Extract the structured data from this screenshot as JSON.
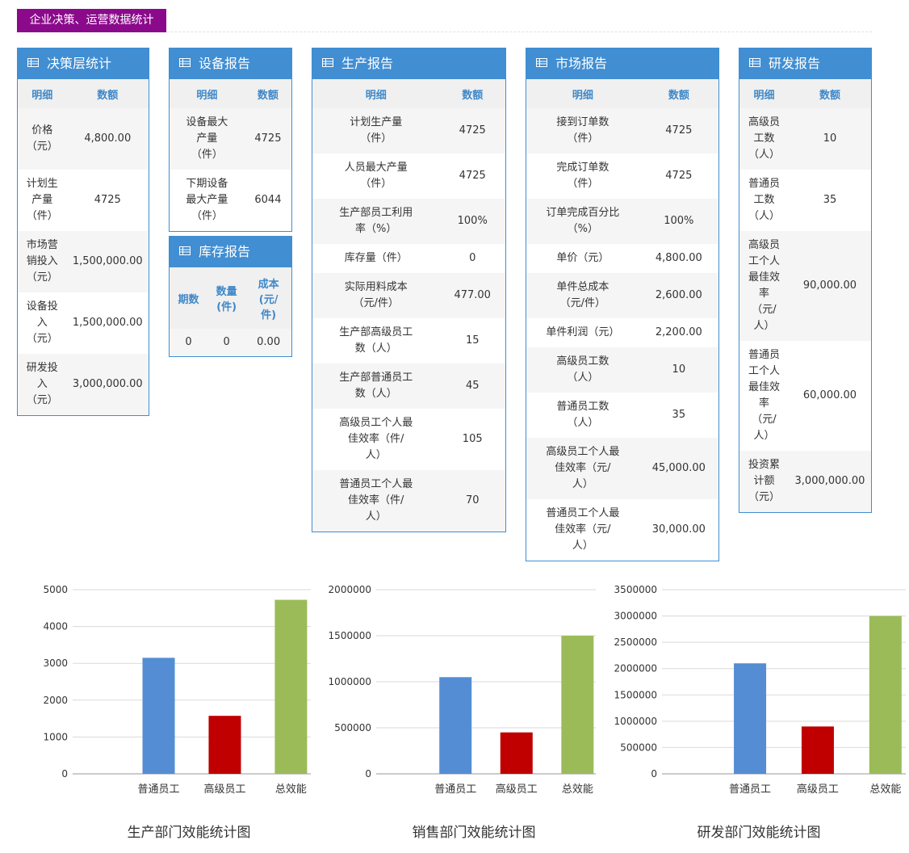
{
  "page_tag": "企业决策、运营数据统计",
  "colors": {
    "accent": "#418ed2",
    "tag": "#8b0a8b",
    "bar_normal": "#548dd4",
    "bar_senior": "#c00000",
    "bar_total": "#9bbb59"
  },
  "icons": {
    "table": "table-icon"
  },
  "panels": {
    "decision": {
      "title": "决策层统计",
      "headers": [
        "明细",
        "数额"
      ],
      "rows": [
        [
          "价格\n（元）",
          "4,800.00"
        ],
        [
          "计划生\n产量\n（件）",
          "4725"
        ],
        [
          "市场营\n销投入\n（元）",
          "1,500,000.00"
        ],
        [
          "设备投\n入\n（元）",
          "1,500,000.00"
        ],
        [
          "研发投\n入\n（元）",
          "3,000,000.00"
        ]
      ]
    },
    "equipment": {
      "title": "设备报告",
      "headers": [
        "明细",
        "数额"
      ],
      "rows": [
        [
          "设备最大\n产量\n（件）",
          "4725"
        ],
        [
          "下期设备\n最大产量\n（件）",
          "6044"
        ]
      ]
    },
    "inventory": {
      "title": "库存报告",
      "headers": [
        "期数",
        "数量\n(件)",
        "成本\n(元/\n件)"
      ],
      "rows": [
        [
          "0",
          "0",
          "0.00"
        ]
      ]
    },
    "production": {
      "title": "生产报告",
      "headers": [
        "明细",
        "数额"
      ],
      "rows": [
        [
          "计划生产量\n（件）",
          "4725"
        ],
        [
          "人员最大产量\n（件）",
          "4725"
        ],
        [
          "生产部员工利用\n率（%）",
          "100%"
        ],
        [
          "库存量（件）",
          "0"
        ],
        [
          "实际用料成本\n（元/件）",
          "477.00"
        ],
        [
          "生产部高级员工\n数（人）",
          "15"
        ],
        [
          "生产部普通员工\n数（人）",
          "45"
        ],
        [
          "高级员工个人最\n佳效率（件/\n人）",
          "105"
        ],
        [
          "普通员工个人最\n佳效率（件/\n人）",
          "70"
        ]
      ]
    },
    "market": {
      "title": "市场报告",
      "headers": [
        "明细",
        "数额"
      ],
      "rows": [
        [
          "接到订单数\n（件）",
          "4725"
        ],
        [
          "完成订单数\n（件）",
          "4725"
        ],
        [
          "订单完成百分比\n（%）",
          "100%"
        ],
        [
          "单价（元）",
          "4,800.00"
        ],
        [
          "单件总成本\n（元/件）",
          "2,600.00"
        ],
        [
          "单件利润（元）",
          "2,200.00"
        ],
        [
          "高级员工数\n（人）",
          "10"
        ],
        [
          "普通员工数\n（人）",
          "35"
        ],
        [
          "高级员工个人最\n佳效率（元/\n人）",
          "45,000.00"
        ],
        [
          "普通员工个人最\n佳效率（元/\n人）",
          "30,000.00"
        ]
      ]
    },
    "rd": {
      "title": "研发报告",
      "headers": [
        "明细",
        "数额"
      ],
      "rows": [
        [
          "高级员\n工数\n（人）",
          "10"
        ],
        [
          "普通员\n工数\n（人）",
          "35"
        ],
        [
          "高级员\n工个人\n最佳效\n率\n（元/\n人）",
          "90,000.00"
        ],
        [
          "普通员\n工个人\n最佳效\n率\n（元/\n人）",
          "60,000.00"
        ],
        [
          "投资累\n计额\n（元）",
          "3,000,000.00"
        ]
      ]
    }
  },
  "chart_data": [
    {
      "type": "bar",
      "title": "生产部门效能统计图",
      "categories": [
        "普通员工",
        "高级员工",
        "总效能"
      ],
      "values": [
        3150,
        1575,
        4725
      ],
      "ylim": [
        0,
        5000
      ],
      "yticks": [
        0,
        1000,
        2000,
        3000,
        4000,
        5000
      ],
      "grid": true
    },
    {
      "type": "bar",
      "title": "销售部门效能统计图",
      "categories": [
        "普通员工",
        "高级员工",
        "总效能"
      ],
      "values": [
        1050000,
        450000,
        1500000
      ],
      "ylim": [
        0,
        2000000
      ],
      "yticks": [
        0,
        500000,
        1000000,
        1500000,
        2000000
      ],
      "grid": true
    },
    {
      "type": "bar",
      "title": "研发部门效能统计图",
      "categories": [
        "普通员工",
        "高级员工",
        "总效能"
      ],
      "values": [
        2100000,
        900000,
        3000000
      ],
      "ylim": [
        0,
        3500000
      ],
      "yticks": [
        0,
        500000,
        1000000,
        1500000,
        2000000,
        2500000,
        3000000,
        3500000
      ],
      "grid": true
    }
  ]
}
